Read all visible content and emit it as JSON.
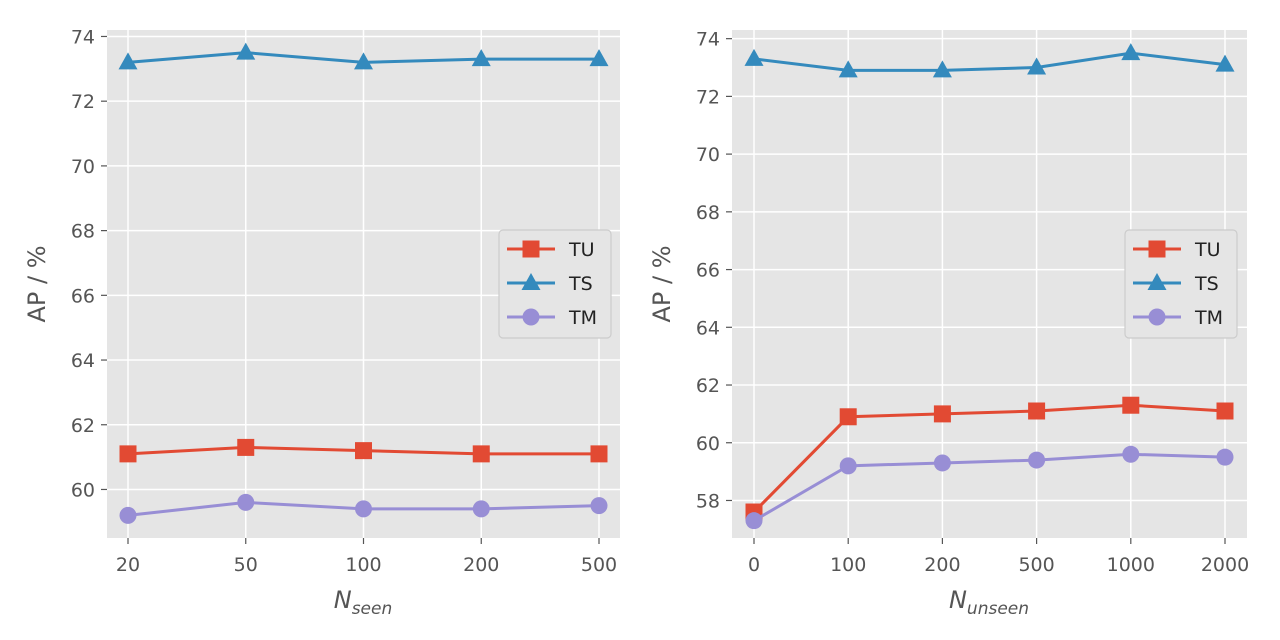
{
  "chart_data": [
    {
      "type": "line",
      "xlabel_main": "N",
      "xlabel_sub": "seen",
      "ylabel": "AP / %",
      "categories": [
        "20",
        "50",
        "100",
        "200",
        "500"
      ],
      "ylim": [
        58.5,
        74.2
      ],
      "yticks": [
        "60",
        "62",
        "64",
        "66",
        "68",
        "70",
        "72",
        "74"
      ],
      "legend_position": "center-right",
      "series": [
        {
          "name": "TU",
          "color": "#E24A33",
          "marker": "square",
          "values": [
            61.1,
            61.3,
            61.2,
            61.1,
            61.1
          ]
        },
        {
          "name": "TS",
          "color": "#348ABD",
          "marker": "triangle",
          "values": [
            73.2,
            73.5,
            73.2,
            73.3,
            73.3
          ]
        },
        {
          "name": "TM",
          "color": "#988ED5",
          "marker": "circle",
          "values": [
            59.2,
            59.6,
            59.4,
            59.4,
            59.5
          ]
        }
      ]
    },
    {
      "type": "line",
      "xlabel_main": "N",
      "xlabel_sub": "unseen",
      "ylabel": "AP / %",
      "categories": [
        "0",
        "100",
        "200",
        "500",
        "1000",
        "2000"
      ],
      "ylim": [
        56.7,
        74.3
      ],
      "yticks": [
        "58",
        "60",
        "62",
        "64",
        "66",
        "68",
        "70",
        "72",
        "74"
      ],
      "legend_position": "center-right",
      "series": [
        {
          "name": "TU",
          "color": "#E24A33",
          "marker": "square",
          "values": [
            57.6,
            60.9,
            61.0,
            61.1,
            61.3,
            61.1
          ]
        },
        {
          "name": "TS",
          "color": "#348ABD",
          "marker": "triangle",
          "values": [
            73.3,
            72.9,
            72.9,
            73.0,
            73.5,
            73.1
          ]
        },
        {
          "name": "TM",
          "color": "#988ED5",
          "marker": "circle",
          "values": [
            57.3,
            59.2,
            59.3,
            59.4,
            59.6,
            59.5
          ]
        }
      ]
    }
  ]
}
